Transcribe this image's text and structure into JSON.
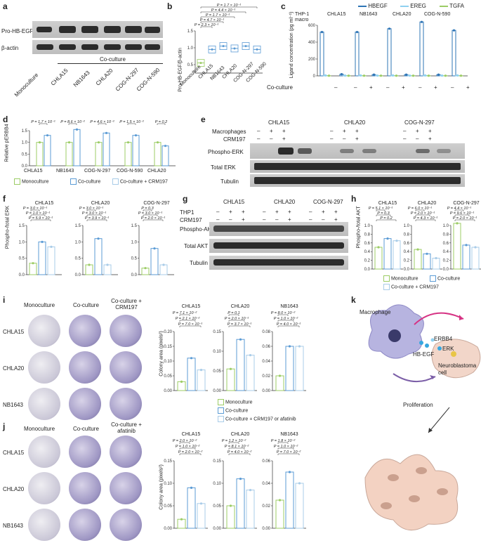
{
  "panel_a": {
    "letter": "a",
    "rows": [
      "Pro-HB-EGF",
      "β-actin"
    ],
    "lanes": [
      "Monoculture",
      "CHLA15",
      "NB1643",
      "CHLA20",
      "COG-N-297",
      "COG-N-590"
    ],
    "coculture_label": "Co-culture"
  },
  "panel_b": {
    "letter": "b",
    "ylabel": "Pro-HB-EGF/β-actin",
    "pvals": [
      "P = 2.3 × 10⁻¹",
      "P = 4.7 × 10⁻¹",
      "P = 1.7 × 10⁻¹",
      "P = 4.4 × 10⁻¹",
      "P = 1.7 × 10⁻¹"
    ]
  },
  "panel_c": {
    "letter": "c",
    "ylabel": "Ligand concentration (pg ml⁻¹)",
    "groups": [
      "THP-1 macro",
      "CHLA15",
      "NB1643",
      "CHLA20",
      "COG-N-590"
    ],
    "coculture_label": "Co-culture",
    "signs": [
      "–",
      "–",
      "+",
      "–",
      "+",
      "–",
      "+",
      "–",
      "+"
    ]
  },
  "panel_d": {
    "letter": "d",
    "ylabel": "Relative pERBB4",
    "pvals": [
      "P = 1.7 × 10⁻¹",
      "P = 8.6 × 10⁻²",
      "P = 4.6 × 10⁻²",
      "P = 1.5 × 10⁻²",
      "P = 0.2"
    ],
    "legend": [
      "Monoculture",
      "Co-culture",
      "Co-culture + CRM197"
    ]
  },
  "panel_e": {
    "letter": "e",
    "lines": [
      "CHLA15",
      "CHLA20",
      "COG-N-297"
    ],
    "rows": [
      "Macrophages",
      "CRM197"
    ],
    "blots": [
      "Phospho-ERK",
      "Total ERK",
      "Tubulin"
    ],
    "mac_signs": [
      "–",
      "+",
      "+"
    ],
    "crm_signs": [
      "–",
      "–",
      "+"
    ]
  },
  "panel_f": {
    "letter": "f",
    "ylabel": "Phospho-/total ERK",
    "lines": [
      "CHLA15",
      "CHLA20",
      "COG-N-297"
    ],
    "pvals": [
      [
        "P = 3.0 × 10⁻¹",
        "P = 1.0 × 10⁻¹",
        "P = 5.9 × 10⁻¹"
      ],
      [
        "P = 3.0 × 10⁻¹",
        "P = 3.0 × 10⁻¹",
        "P = 3.9 × 10⁻¹"
      ],
      [
        "P = 0.3",
        "P = 3.0 × 10⁻¹",
        "P = 2.0 × 10⁻¹"
      ]
    ]
  },
  "panel_g": {
    "letter": "g",
    "lines": [
      "CHLA15",
      "CHLA20",
      "COG-N-297"
    ],
    "rows": [
      "THP1",
      "CRM197"
    ],
    "blots": [
      "Phospho-AKT",
      "Total AKT",
      "Tubulin"
    ]
  },
  "panel_h": {
    "letter": "h",
    "ylabel": "Phospho-/total AKT",
    "lines": [
      "CHLA15",
      "CHLA20",
      "COG-N-297"
    ],
    "pvals": [
      [
        "P = 5.1 × 10⁻¹",
        "P = 0.3",
        "P = 0.2"
      ],
      [
        "P = 6.0 × 10⁻¹",
        "P = 2.0 × 10⁻¹",
        "P = 4.3 × 10⁻¹"
      ],
      [
        "P = 4.4 × 10⁻¹",
        "P = 9.6 × 10⁻¹",
        "P = 2.0 × 10⁻¹"
      ]
    ],
    "legend": [
      "Monoculture",
      "Co-culture",
      "Co-culture + CRM197"
    ]
  },
  "panel_i": {
    "letter": "i",
    "cols": [
      "Monoculture",
      "Co-culture",
      "Co-culture + CRM197"
    ],
    "rows": [
      "CHLA15",
      "CHLA20",
      "NB1643"
    ],
    "ylabel": "Colony area (pixels²)",
    "titles": [
      "CHLA15",
      "CHLA20",
      "NB1643"
    ],
    "pvals": [
      [
        "P = 7.1 × 10⁻²",
        "P = 2.1 × 10⁻²",
        "P = 7.0 × 10⁻¹"
      ],
      [
        "P = 0.1",
        "P = 2.0 × 10⁻¹",
        "P = 3.7 × 10⁻¹"
      ],
      [
        "P = 8.0 × 10⁻²",
        "P = 1.0 × 10⁻²",
        "P = 4.0 × 10⁻¹"
      ]
    ],
    "legend": [
      "Monoculture",
      "Co-culture",
      "Co-culture + CRM197 or afatinib"
    ]
  },
  "panel_j": {
    "letter": "j",
    "cols": [
      "Monoculture",
      "Co-culture",
      "Co-culture + afatinib"
    ],
    "rows": [
      "CHLA15",
      "CHLA20",
      "NB1643"
    ],
    "ylabel": "Colony area (pixels²)",
    "titles": [
      "CHLA15",
      "CHLA20",
      "NB1643"
    ],
    "pvals": [
      [
        "P = 2.0 × 10⁻²",
        "P = 1.0 × 10⁻²",
        "P = 2.0 × 10⁻²"
      ],
      [
        "P = 1.2 × 10⁻²",
        "P = 8.1 × 10⁻²",
        "P = 4.0 × 10⁻²"
      ],
      [
        "P = 1.8 × 10⁻²",
        "P = 1.0 × 10⁻²",
        "P = 7.0 × 10⁻²"
      ]
    ]
  },
  "panel_k": {
    "letter": "k",
    "labels": [
      "Macrophage",
      "HB-EGF",
      "ERBB4",
      "ERK",
      "Neuroblastoma cell",
      "Proliferation"
    ]
  },
  "colors": {
    "mono": "#9ccc65",
    "co": "#5b9bd5",
    "crm": "#a9cce8",
    "ereg": "#8fd1f0"
  },
  "chart_data": [
    {
      "type": "bar",
      "panel": "b",
      "categories": [
        "Monoculture",
        "CHLA15",
        "NB1643",
        "CHLA20",
        "COG-N-297",
        "COG-N-590"
      ],
      "values": [
        0.55,
        0.95,
        1.05,
        0.98,
        1.05,
        0.95
      ],
      "ylabel": "Pro-HB-EGF/β-actin",
      "ylim": [
        0.25,
        1.5
      ],
      "yticks": [
        0.5,
        1.0,
        1.5
      ]
    },
    {
      "type": "bar",
      "panel": "c",
      "categories": [
        "THP-1 macro",
        "CHLA15 –",
        "CHLA15 +",
        "NB1643 –",
        "NB1643 +",
        "CHLA20 –",
        "CHLA20 +",
        "COG-N-590 –",
        "COG-N-590 +"
      ],
      "series": [
        {
          "name": "HBEGF",
          "values": [
            520,
            20,
            520,
            15,
            560,
            15,
            640,
            15,
            540
          ]
        },
        {
          "name": "EREG",
          "values": [
            5,
            3,
            5,
            3,
            5,
            3,
            5,
            3,
            5
          ]
        },
        {
          "name": "TGFA",
          "values": [
            2,
            2,
            2,
            2,
            2,
            2,
            2,
            2,
            2
          ]
        }
      ],
      "ylabel": "Ligand concentration (pg ml⁻¹)",
      "ylim": [
        0,
        600
      ],
      "yticks": [
        0,
        200,
        400,
        600
      ]
    },
    {
      "type": "bar",
      "panel": "d",
      "categories": [
        "CHLA15",
        "NB1643",
        "COG-N-297",
        "COG-N-590",
        "CHLA20"
      ],
      "series": [
        {
          "name": "Monoculture",
          "values": [
            1.0,
            1.0,
            1.0,
            1.0,
            1.0
          ]
        },
        {
          "name": "Co-culture",
          "values": [
            1.3,
            1.55,
            1.4,
            1.3,
            0.85
          ]
        }
      ],
      "ylabel": "Relative pERBB4",
      "ylim": [
        0,
        1.5
      ],
      "yticks": [
        0,
        0.25,
        0.5,
        0.75,
        1.0,
        1.25,
        1.5
      ]
    },
    {
      "type": "bar",
      "panel": "f",
      "categories": [
        "CHLA15",
        "CHLA20",
        "COG-N-297"
      ],
      "series": [
        {
          "name": "Monoculture",
          "values": [
            0.35,
            0.3,
            0.2
          ]
        },
        {
          "name": "Co-culture",
          "values": [
            1.0,
            1.1,
            0.8
          ]
        },
        {
          "name": "Co-culture + CRM197",
          "values": [
            0.85,
            0.3,
            0.3
          ]
        }
      ],
      "ylabel": "Phospho-/total ERK",
      "ylim": [
        0,
        1.5
      ],
      "yticks": [
        0,
        0.5,
        1.0,
        1.5
      ]
    },
    {
      "type": "bar",
      "panel": "h",
      "categories": [
        "CHLA15",
        "CHLA20",
        "COG-N-297"
      ],
      "series": [
        {
          "name": "Monoculture",
          "values": [
            0.5,
            0.45,
            1.05
          ]
        },
        {
          "name": "Co-culture",
          "values": [
            0.7,
            0.35,
            0.55
          ]
        },
        {
          "name": "Co-culture + CRM197",
          "values": [
            0.65,
            0.25,
            0.5
          ]
        }
      ],
      "ylabel": "Phospho-/total AKT",
      "ylim": [
        0,
        1.0
      ],
      "yticks": [
        0,
        0.2,
        0.4,
        0.6,
        0.8,
        1.0
      ]
    },
    {
      "type": "bar",
      "panel": "i",
      "categories": [
        "CHLA15",
        "CHLA20",
        "NB1643"
      ],
      "series": [
        {
          "name": "Monoculture",
          "values": [
            0.03,
            0.055,
            0.02
          ]
        },
        {
          "name": "Co-culture",
          "values": [
            0.11,
            0.13,
            0.06
          ]
        },
        {
          "name": "Co-culture + CRM197 or afatinib",
          "values": [
            0.07,
            0.09,
            0.06
          ]
        }
      ],
      "ylabel": "Colony area (pixels²)",
      "ylims": [
        [
          0,
          0.2
        ],
        [
          0,
          0.15
        ],
        [
          0,
          0.08
        ]
      ],
      "yticks": [
        [
          0,
          0.05,
          0.1,
          0.15,
          0.2
        ],
        [
          0,
          0.05,
          0.1,
          0.15
        ],
        [
          0,
          0.02,
          0.04,
          0.06,
          0.08
        ]
      ]
    },
    {
      "type": "bar",
      "panel": "j",
      "categories": [
        "CHLA15",
        "CHLA20",
        "NB1643"
      ],
      "series": [
        {
          "name": "Monoculture",
          "values": [
            0.02,
            0.05,
            0.025
          ]
        },
        {
          "name": "Co-culture",
          "values": [
            0.09,
            0.11,
            0.05
          ]
        },
        {
          "name": "Co-culture + afatinib",
          "values": [
            0.055,
            0.085,
            0.04
          ]
        }
      ],
      "ylabel": "Colony area (pixels²)",
      "ylims": [
        [
          0,
          0.15
        ],
        [
          0,
          0.15
        ],
        [
          0,
          0.06
        ]
      ],
      "yticks": [
        [
          0,
          0.05,
          0.1,
          0.15
        ],
        [
          0,
          0.05,
          0.1,
          0.15
        ],
        [
          0,
          0.02,
          0.04,
          0.06
        ]
      ]
    }
  ]
}
